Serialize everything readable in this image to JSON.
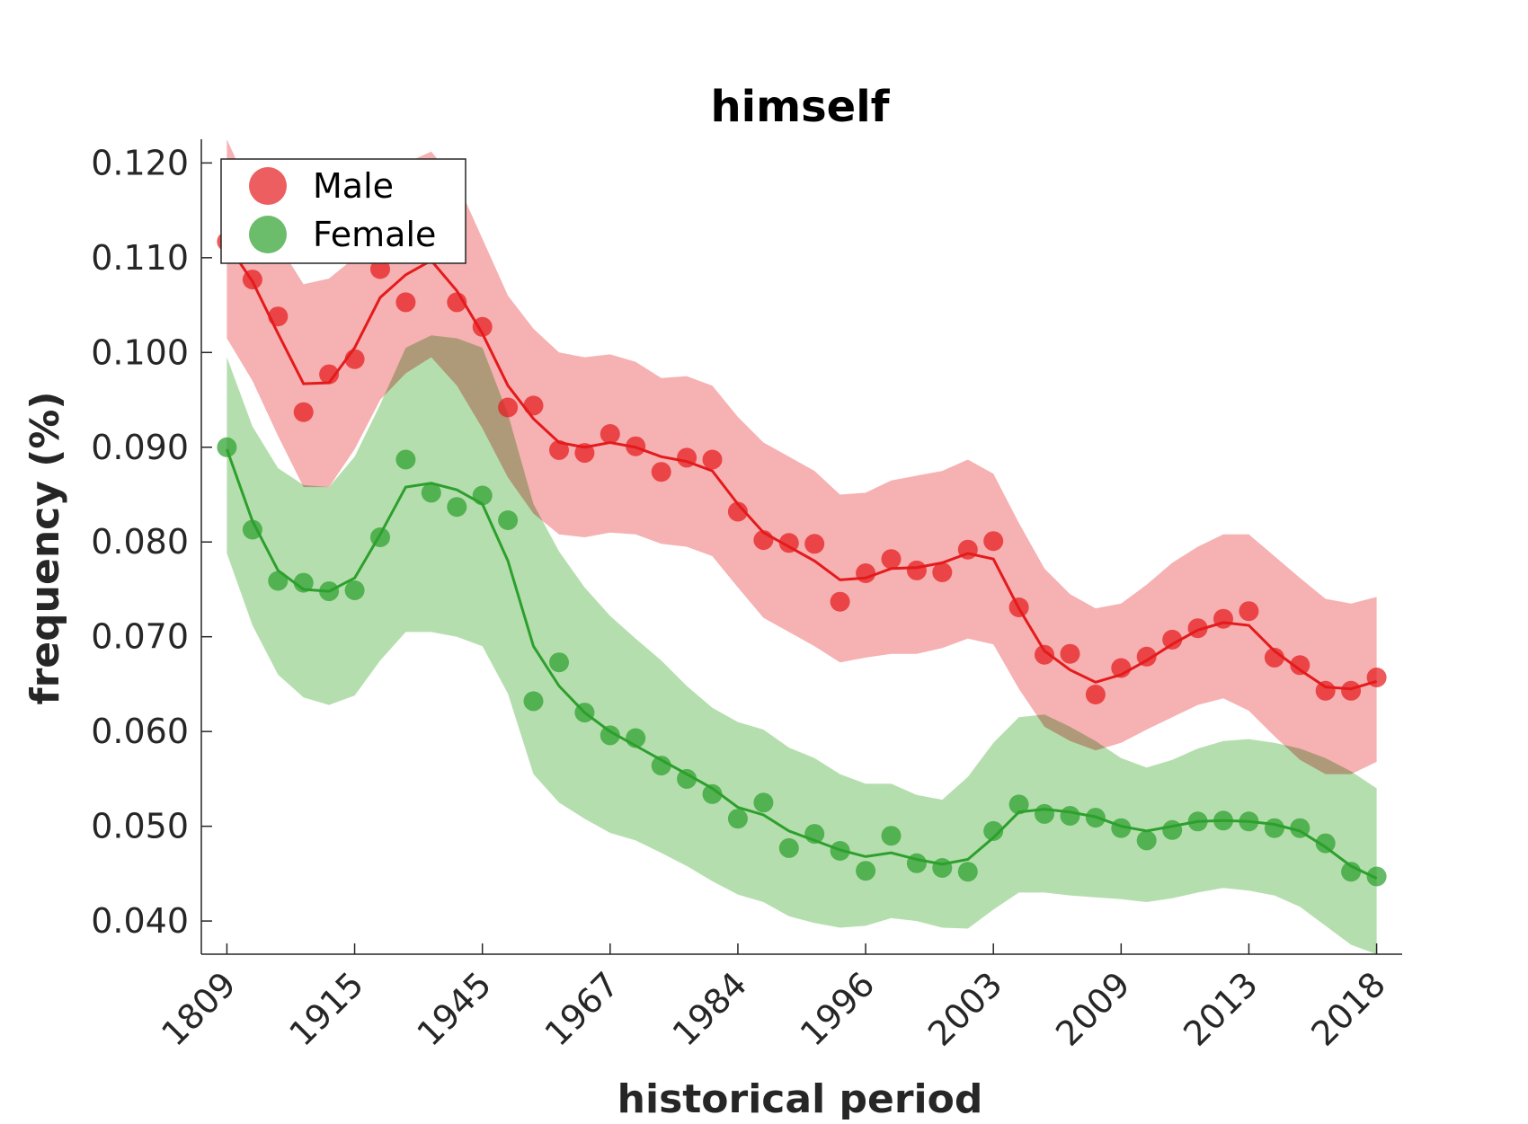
{
  "chart_data": {
    "type": "line",
    "title": "himself",
    "xlabel": "historical period",
    "ylabel": "frequency (%)",
    "ylim": [
      0.0365,
      0.1225
    ],
    "y_ticks": [
      "0.120",
      "0.110",
      "0.100",
      "0.090",
      "0.080",
      "0.070",
      "0.060",
      "0.050",
      "0.040"
    ],
    "y_tick_values": [
      0.12,
      0.11,
      0.1,
      0.09,
      0.08,
      0.07,
      0.06,
      0.05,
      0.04
    ],
    "x_tick_labels": [
      "1809",
      "1915",
      "1945",
      "1967",
      "1984",
      "1996",
      "2003",
      "2009",
      "2013",
      "2018"
    ],
    "x_tick_positions": [
      0,
      5,
      10,
      15,
      20,
      25,
      30,
      35,
      40,
      45
    ],
    "x_range": [
      -1,
      46
    ],
    "legend": {
      "position": "top-left",
      "entries": [
        "Male",
        "Female"
      ]
    },
    "grid": false,
    "series": [
      {
        "name": "Male",
        "color": "#e41a1c",
        "band_color": "#f4a3a4",
        "points": [
          0.1117,
          0.1077,
          0.1038,
          0.0937,
          0.0977,
          0.0993,
          0.1088,
          0.1053,
          0.1112,
          0.1053,
          0.1027,
          0.0942,
          0.0944,
          0.0897,
          0.0894,
          0.0914,
          0.0901,
          0.0874,
          0.0889,
          0.0887,
          0.0832,
          0.0802,
          0.0799,
          0.0798,
          0.0737,
          0.0767,
          0.0782,
          0.077,
          0.0768,
          0.0792,
          0.0801,
          0.0731,
          0.0681,
          0.0682,
          0.0639,
          0.0667,
          0.0679,
          0.0697,
          0.0709,
          0.0719,
          0.0727,
          0.0678,
          0.067,
          0.0643,
          0.0643,
          0.0657
        ],
        "smooth": [
          0.1115,
          0.1075,
          0.102,
          0.0967,
          0.0968,
          0.1005,
          0.1058,
          0.1082,
          0.1097,
          0.1065,
          0.102,
          0.0965,
          0.093,
          0.0905,
          0.09,
          0.0905,
          0.09,
          0.089,
          0.0885,
          0.0875,
          0.084,
          0.081,
          0.0795,
          0.078,
          0.076,
          0.0762,
          0.0772,
          0.0773,
          0.0778,
          0.0788,
          0.0782,
          0.073,
          0.0685,
          0.0665,
          0.0652,
          0.066,
          0.0675,
          0.0692,
          0.0707,
          0.0715,
          0.0712,
          0.0685,
          0.0665,
          0.0647,
          0.0645,
          0.0653
        ],
        "upper": [
          0.1225,
          0.1165,
          0.1115,
          0.1072,
          0.1078,
          0.11,
          0.1165,
          0.12,
          0.1212,
          0.118,
          0.112,
          0.106,
          0.1025,
          0.1,
          0.0995,
          0.0998,
          0.099,
          0.0973,
          0.0975,
          0.0965,
          0.0932,
          0.0905,
          0.089,
          0.0875,
          0.085,
          0.0852,
          0.0865,
          0.087,
          0.0875,
          0.0887,
          0.0872,
          0.082,
          0.0772,
          0.0745,
          0.073,
          0.0735,
          0.0755,
          0.0778,
          0.0795,
          0.0808,
          0.0808,
          0.0785,
          0.0762,
          0.074,
          0.0735,
          0.0742
        ],
        "lower": [
          0.1015,
          0.097,
          0.0912,
          0.0858,
          0.0858,
          0.0898,
          0.095,
          0.0978,
          0.0995,
          0.0965,
          0.092,
          0.0868,
          0.083,
          0.0808,
          0.0805,
          0.081,
          0.0808,
          0.0798,
          0.0795,
          0.0785,
          0.0752,
          0.072,
          0.0705,
          0.069,
          0.0673,
          0.0678,
          0.0682,
          0.0682,
          0.0688,
          0.0698,
          0.0692,
          0.0645,
          0.0605,
          0.059,
          0.058,
          0.0588,
          0.0602,
          0.0615,
          0.0628,
          0.0635,
          0.0622,
          0.0595,
          0.057,
          0.0555,
          0.0555,
          0.0568
        ]
      },
      {
        "name": "Female",
        "color": "#2ca02c",
        "band_color": "#a8d8a0",
        "points": [
          0.09,
          0.0813,
          0.0759,
          0.0757,
          0.0748,
          0.0749,
          0.0805,
          0.0887,
          0.0852,
          0.0837,
          0.0849,
          0.0823,
          0.0632,
          0.0673,
          0.062,
          0.0596,
          0.0593,
          0.0564,
          0.055,
          0.0534,
          0.0508,
          0.0525,
          0.0477,
          0.0492,
          0.0474,
          0.0453,
          0.049,
          0.0461,
          0.0456,
          0.0452,
          0.0495,
          0.0523,
          0.0513,
          0.0511,
          0.0509,
          0.0498,
          0.0485,
          0.0496,
          0.0505,
          0.0506,
          0.0505,
          0.0498,
          0.0498,
          0.0482,
          0.0452,
          0.0447
        ],
        "smooth": [
          0.0898,
          0.0822,
          0.077,
          0.075,
          0.0748,
          0.0762,
          0.0808,
          0.0858,
          0.0862,
          0.0855,
          0.084,
          0.078,
          0.069,
          0.0648,
          0.062,
          0.06,
          0.0585,
          0.057,
          0.0555,
          0.054,
          0.052,
          0.0512,
          0.0495,
          0.0485,
          0.0475,
          0.0468,
          0.0472,
          0.0465,
          0.046,
          0.0465,
          0.0488,
          0.0515,
          0.0518,
          0.0515,
          0.051,
          0.05,
          0.0495,
          0.05,
          0.0505,
          0.0506,
          0.0505,
          0.0502,
          0.0495,
          0.0478,
          0.0458,
          0.0445
        ],
        "upper": [
          0.0995,
          0.0922,
          0.0878,
          0.086,
          0.0858,
          0.089,
          0.0945,
          0.1005,
          0.1018,
          0.1015,
          0.1005,
          0.0935,
          0.084,
          0.079,
          0.0752,
          0.0722,
          0.0698,
          0.0675,
          0.0648,
          0.0625,
          0.061,
          0.0602,
          0.0583,
          0.0572,
          0.0555,
          0.0545,
          0.0545,
          0.0533,
          0.0528,
          0.0552,
          0.0588,
          0.0615,
          0.0618,
          0.0605,
          0.059,
          0.0572,
          0.0562,
          0.057,
          0.0582,
          0.059,
          0.0592,
          0.0588,
          0.0582,
          0.0572,
          0.0558,
          0.054
        ],
        "lower": [
          0.0788,
          0.0712,
          0.066,
          0.0636,
          0.0628,
          0.0638,
          0.0675,
          0.0705,
          0.0705,
          0.07,
          0.069,
          0.064,
          0.0555,
          0.0525,
          0.0508,
          0.0493,
          0.0485,
          0.0472,
          0.0458,
          0.0442,
          0.0428,
          0.042,
          0.0405,
          0.0398,
          0.0393,
          0.0395,
          0.0403,
          0.04,
          0.0393,
          0.0392,
          0.0412,
          0.043,
          0.043,
          0.0427,
          0.0425,
          0.0423,
          0.042,
          0.0424,
          0.043,
          0.0435,
          0.0432,
          0.0427,
          0.0415,
          0.0395,
          0.0375,
          0.0365
        ]
      }
    ]
  }
}
